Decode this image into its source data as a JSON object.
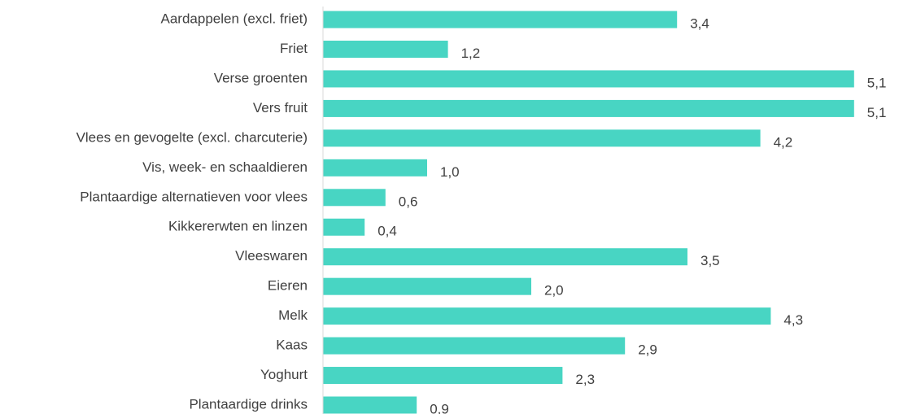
{
  "chart_data": {
    "type": "bar",
    "orientation": "horizontal",
    "categories": [
      "Aardappelen (excl. friet)",
      "Friet",
      "Verse groenten",
      "Vers fruit",
      "Vlees en gevogelte (excl. charcuterie)",
      "Vis, week- en schaaldieren",
      "Plantaardige alternatieven voor vlees",
      "Kikkererwten en linzen",
      "Vleeswaren",
      "Eieren",
      "Melk",
      "Kaas",
      "Yoghurt",
      "Plantaardige drinks"
    ],
    "values": [
      3.4,
      1.2,
      5.1,
      5.1,
      4.2,
      1.0,
      0.6,
      0.4,
      3.5,
      2.0,
      4.3,
      2.9,
      2.3,
      0.9
    ],
    "value_labels": [
      "3,4",
      "1,2",
      "5,1",
      "5,1",
      "4,2",
      "1,0",
      "0,6",
      "0,4",
      "3,5",
      "2,0",
      "4,3",
      "2,9",
      "2,3",
      "0,9"
    ],
    "color": "#48d5c3",
    "xlim": [
      0,
      5.5
    ]
  }
}
